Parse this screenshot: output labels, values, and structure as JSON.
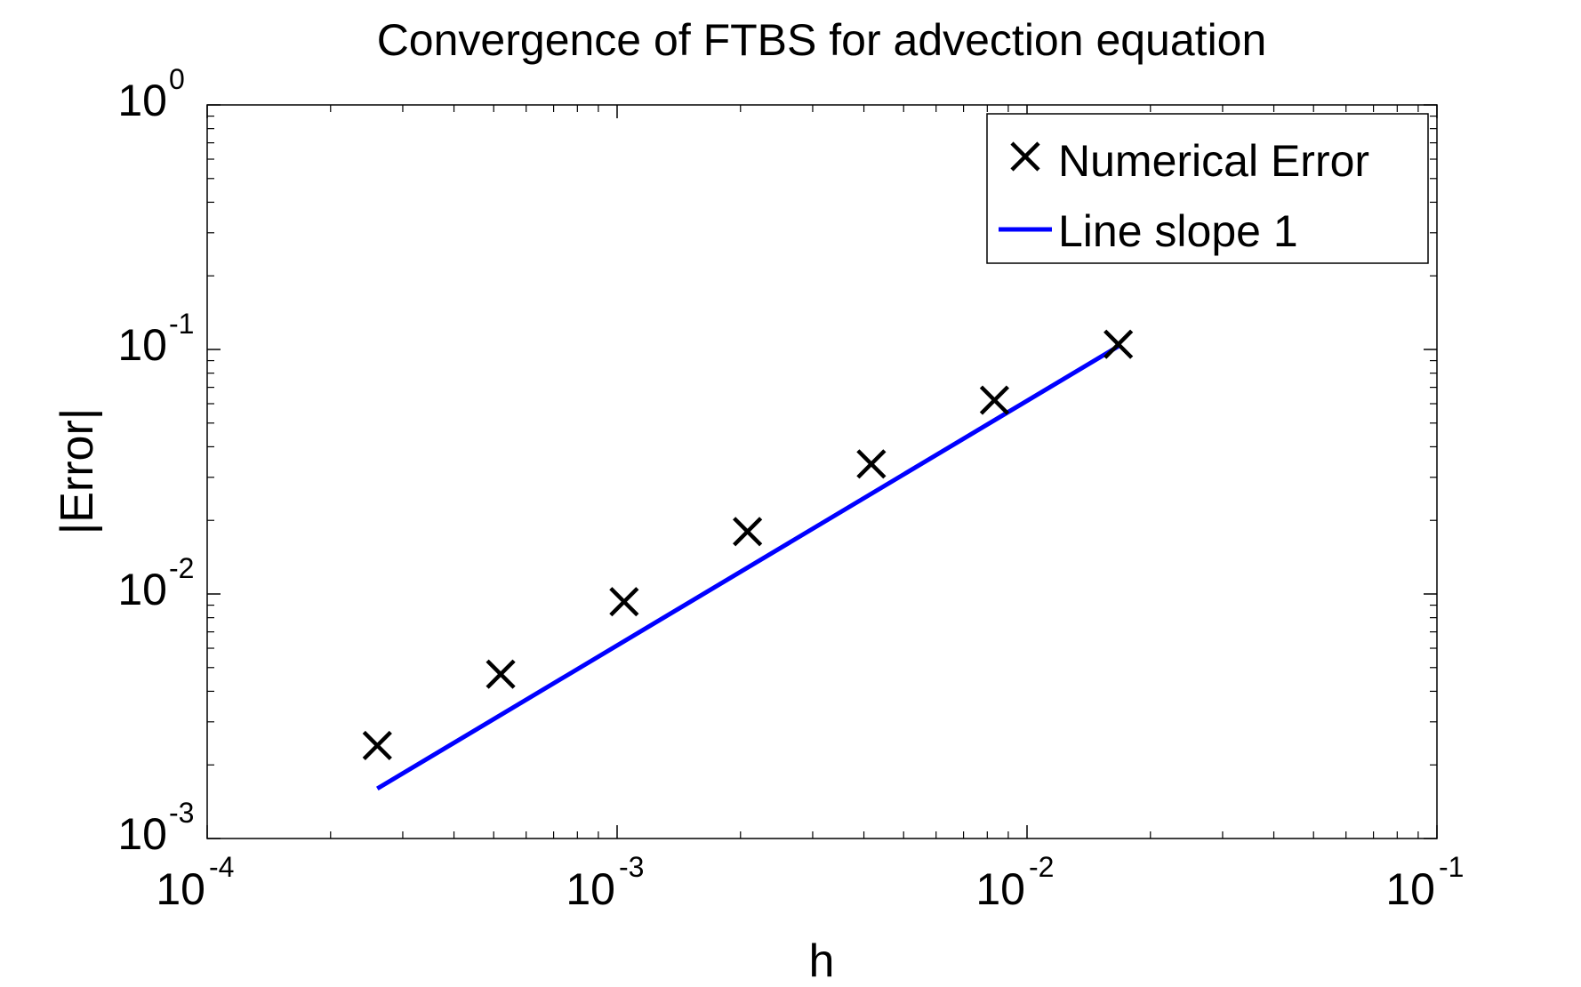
{
  "chart_data": {
    "type": "scatter",
    "title": "Convergence of FTBS for advection equation",
    "xlabel": "h",
    "ylabel": "|Error|",
    "x_scale": "log",
    "y_scale": "log",
    "xlim": [
      0.0001,
      0.1
    ],
    "ylim": [
      0.001,
      1
    ],
    "x_ticks": [
      {
        "value": 0.0001,
        "base": "10",
        "exp": "-4"
      },
      {
        "value": 0.001,
        "base": "10",
        "exp": "-3"
      },
      {
        "value": 0.01,
        "base": "10",
        "exp": "-2"
      },
      {
        "value": 0.1,
        "base": "10",
        "exp": "-1"
      }
    ],
    "y_ticks": [
      {
        "value": 0.001,
        "base": "10",
        "exp": "-3"
      },
      {
        "value": 0.01,
        "base": "10",
        "exp": "-2"
      },
      {
        "value": 0.1,
        "base": "10",
        "exp": "-1"
      },
      {
        "value": 1,
        "base": "10",
        "exp": "0"
      }
    ],
    "grid": false,
    "legend_position": "top-right",
    "series": [
      {
        "name": "Numerical Error",
        "kind": "markers",
        "marker": "x",
        "color": "#000000",
        "x": [
          0.00026,
          0.00052,
          0.00104,
          0.00208,
          0.00417,
          0.00833,
          0.0167
        ],
        "y": [
          0.0024,
          0.0047,
          0.0093,
          0.018,
          0.034,
          0.062,
          0.105
        ]
      },
      {
        "name": "Line slope 1",
        "kind": "line",
        "color": "#0000ff",
        "x": [
          0.00026,
          0.0167
        ],
        "y": [
          0.0016,
          0.103
        ]
      }
    ]
  }
}
